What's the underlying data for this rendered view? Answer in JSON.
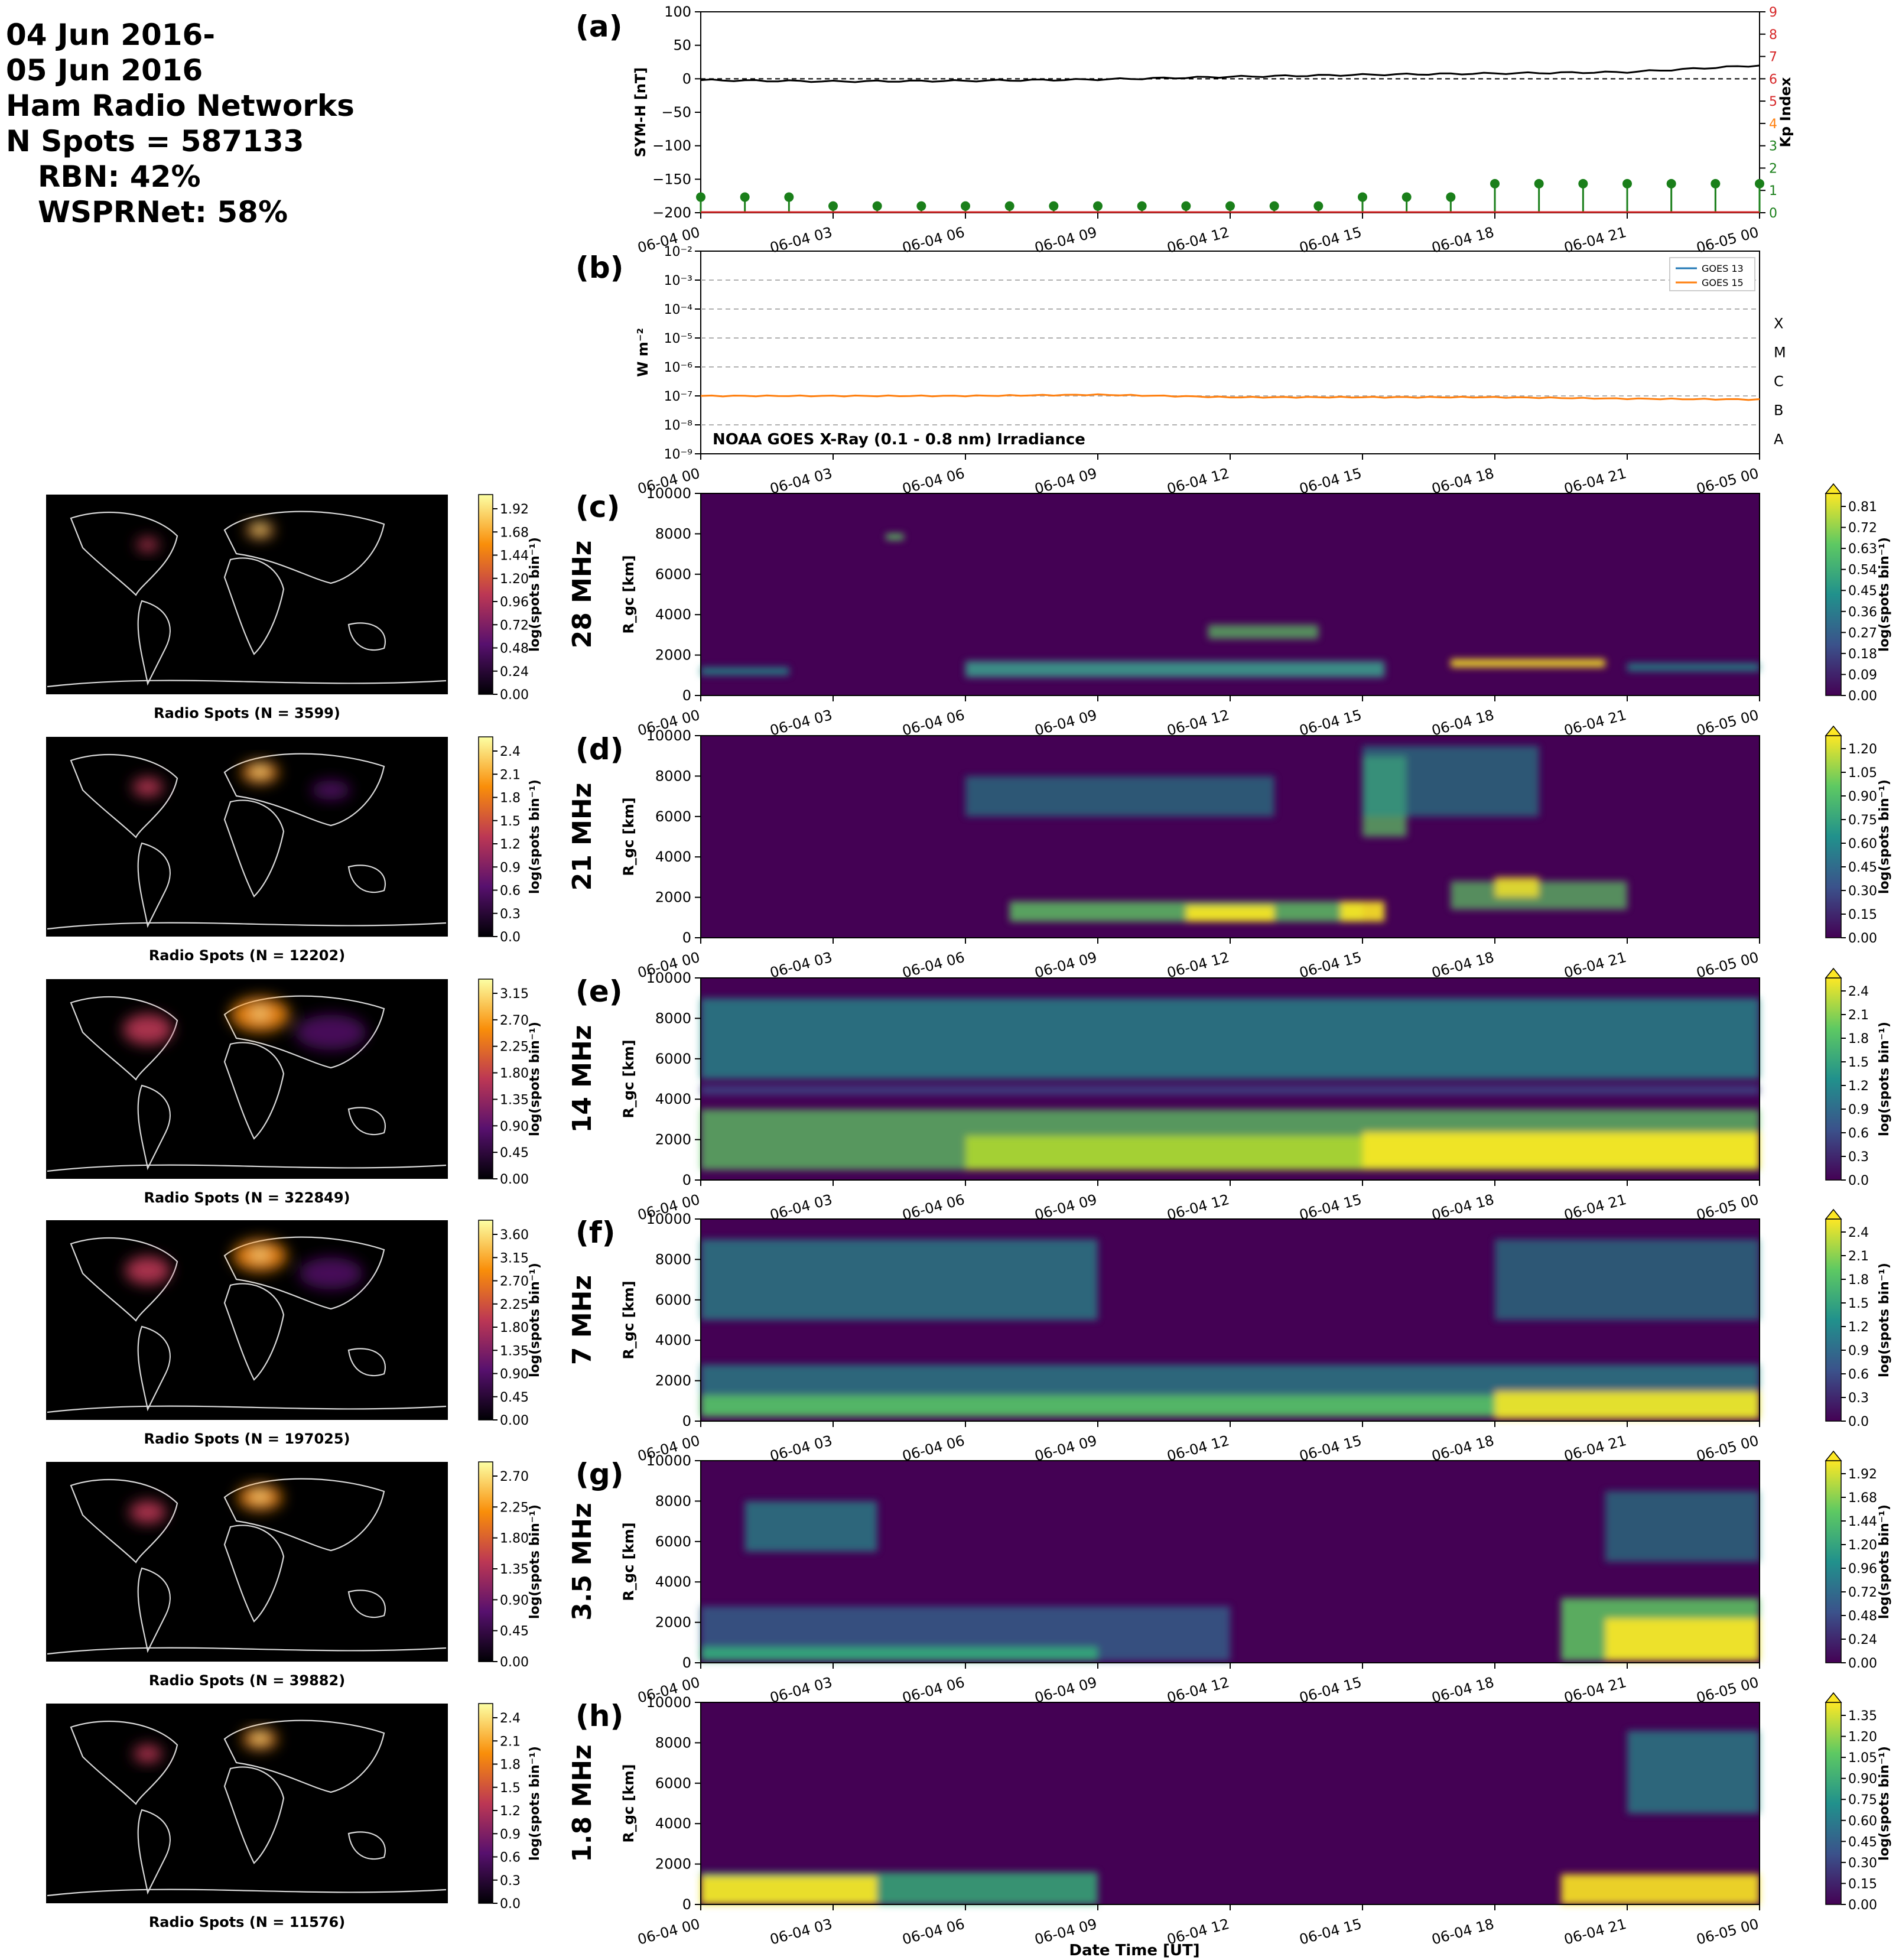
{
  "header": {
    "lines": [
      "04 Jun 2016-",
      "05 Jun 2016",
      "Ham Radio Networks",
      "N Spots = 587133"
    ],
    "sub_lines": [
      "RBN: 42%",
      "WSPRNet: 58%"
    ]
  },
  "time_ticks": [
    "06-04 00",
    "06-04 03",
    "06-04 06",
    "06-04 09",
    "06-04 12",
    "06-04 15",
    "06-04 18",
    "06-04 21",
    "06-05 00"
  ],
  "x_axis_label": "Date Time [UT]",
  "colors": {
    "black": "#000000",
    "green": "#1a7f1a",
    "red": "#d62728",
    "goes13": "#1f77b4",
    "goes15": "#ff7f0e",
    "viridis_low": "#440154",
    "viridis_high": "#fde725"
  },
  "chart_data": [
    {
      "type": "line",
      "panel": "(a)",
      "ylabel": "SYM-H [nT]",
      "ylim": [
        -200,
        100
      ],
      "yticks": [
        100,
        50,
        0,
        -50,
        -100,
        -150,
        -200
      ],
      "x": [
        "06-04 00",
        "06-04 03",
        "06-04 06",
        "06-04 09",
        "06-04 12",
        "06-04 15",
        "06-04 18",
        "06-04 21",
        "06-05 00"
      ],
      "series": [
        {
          "values": [
            -2,
            -4,
            -3,
            -1,
            3,
            6,
            8,
            10,
            20
          ]
        }
      ],
      "reference_line": 0,
      "secondary": {
        "type": "stem",
        "ylabel": "Kp Index",
        "ylim": [
          0,
          9
        ],
        "yticks": [
          0,
          1,
          2,
          3,
          4,
          5,
          6,
          7,
          8,
          9
        ],
        "x_hours": [
          0,
          1,
          2,
          3,
          4,
          5,
          6,
          7,
          8,
          9,
          10,
          11,
          12,
          13,
          14,
          15,
          16,
          17,
          18,
          19,
          20,
          21,
          22,
          23,
          24
        ],
        "values": [
          0.7,
          0.7,
          0.7,
          0.3,
          0.3,
          0.3,
          0.3,
          0.3,
          0.3,
          0.3,
          0.3,
          0.3,
          0.3,
          0.3,
          0.3,
          0.7,
          0.7,
          0.7,
          1.3,
          1.3,
          1.3,
          1.3,
          1.3,
          1.3,
          1.3
        ]
      }
    },
    {
      "type": "line",
      "panel": "(b)",
      "title": "NOAA GOES X-Ray (0.1 - 0.8 nm) Irradiance",
      "ylabel": "W m⁻²",
      "scale": "log",
      "ylim": [
        "1e-9",
        "1e-2"
      ],
      "yticks": [
        "10⁻²",
        "10⁻³",
        "10⁻⁴",
        "10⁻⁵",
        "10⁻⁶",
        "10⁻⁷",
        "10⁻⁸",
        "10⁻⁹"
      ],
      "flare_classes": [
        "X",
        "M",
        "C",
        "B",
        "A"
      ],
      "legend": [
        "GOES 13",
        "GOES 15"
      ],
      "legend_position": "top-right",
      "x": [
        "06-04 00",
        "06-04 03",
        "06-04 06",
        "06-04 09",
        "06-04 12",
        "06-04 15",
        "06-04 18",
        "06-04 21",
        "06-05 00"
      ],
      "series": [
        {
          "name": "GOES 15",
          "values": [
            1e-07,
            1e-07,
            1e-07,
            1.1e-07,
            9e-08,
            9e-08,
            9e-08,
            8e-08,
            7.5e-08
          ]
        }
      ]
    },
    {
      "type": "heatmap",
      "panel": "(c)",
      "band": "28 MHz",
      "ylabel": "R_gc [km]",
      "ylim": [
        0,
        10000
      ],
      "yticks": [
        0,
        2000,
        4000,
        6000,
        8000,
        10000
      ],
      "colorbar": {
        "label": "log(spots bin⁻¹)",
        "ticks": [
          "0.00",
          "0.09",
          "0.18",
          "0.27",
          "0.36",
          "0.45",
          "0.54",
          "0.63",
          "0.72",
          "0.81"
        ]
      },
      "map": {
        "label": "Radio Spots (N = 3599)",
        "colorbar_ticks": [
          "0.00",
          "0.24",
          "0.48",
          "0.72",
          "0.96",
          "1.20",
          "1.44",
          "1.68",
          "1.92"
        ]
      }
    },
    {
      "type": "heatmap",
      "panel": "(d)",
      "band": "21 MHz",
      "ylabel": "R_gc [km]",
      "ylim": [
        0,
        10000
      ],
      "yticks": [
        0,
        2000,
        4000,
        6000,
        8000,
        10000
      ],
      "colorbar": {
        "label": "log(spots bin⁻¹)",
        "ticks": [
          "0.00",
          "0.15",
          "0.30",
          "0.45",
          "0.60",
          "0.75",
          "0.90",
          "1.05",
          "1.20"
        ]
      },
      "map": {
        "label": "Radio Spots (N = 12202)",
        "colorbar_ticks": [
          "0.0",
          "0.3",
          "0.6",
          "0.9",
          "1.2",
          "1.5",
          "1.8",
          "2.1",
          "2.4"
        ]
      }
    },
    {
      "type": "heatmap",
      "panel": "(e)",
      "band": "14 MHz",
      "ylabel": "R_gc [km]",
      "ylim": [
        0,
        10000
      ],
      "yticks": [
        0,
        2000,
        4000,
        6000,
        8000,
        10000
      ],
      "colorbar": {
        "label": "log(spots bin⁻¹)",
        "ticks": [
          "0.0",
          "0.3",
          "0.6",
          "0.9",
          "1.2",
          "1.5",
          "1.8",
          "2.1",
          "2.4"
        ]
      },
      "map": {
        "label": "Radio Spots (N = 322849)",
        "colorbar_ticks": [
          "0.00",
          "0.45",
          "0.90",
          "1.35",
          "1.80",
          "2.25",
          "2.70",
          "3.15"
        ]
      }
    },
    {
      "type": "heatmap",
      "panel": "(f)",
      "band": "7 MHz",
      "ylabel": "R_gc [km]",
      "ylim": [
        0,
        10000
      ],
      "yticks": [
        0,
        2000,
        4000,
        6000,
        8000,
        10000
      ],
      "colorbar": {
        "label": "log(spots bin⁻¹)",
        "ticks": [
          "0.0",
          "0.3",
          "0.6",
          "0.9",
          "1.2",
          "1.5",
          "1.8",
          "2.1",
          "2.4"
        ]
      },
      "map": {
        "label": "Radio Spots (N = 197025)",
        "colorbar_ticks": [
          "0.00",
          "0.45",
          "0.90",
          "1.35",
          "1.80",
          "2.25",
          "2.70",
          "3.15",
          "3.60"
        ]
      }
    },
    {
      "type": "heatmap",
      "panel": "(g)",
      "band": "3.5 MHz",
      "ylabel": "R_gc [km]",
      "ylim": [
        0,
        10000
      ],
      "yticks": [
        0,
        2000,
        4000,
        6000,
        8000,
        10000
      ],
      "colorbar": {
        "label": "log(spots bin⁻¹)",
        "ticks": [
          "0.00",
          "0.24",
          "0.48",
          "0.72",
          "0.96",
          "1.20",
          "1.44",
          "1.68",
          "1.92"
        ]
      },
      "map": {
        "label": "Radio Spots (N = 39882)",
        "colorbar_ticks": [
          "0.00",
          "0.45",
          "0.90",
          "1.35",
          "1.80",
          "2.25",
          "2.70"
        ]
      }
    },
    {
      "type": "heatmap",
      "panel": "(h)",
      "band": "1.8 MHz",
      "ylabel": "R_gc [km]",
      "ylim": [
        0,
        10000
      ],
      "yticks": [
        0,
        2000,
        4000,
        6000,
        8000,
        10000
      ],
      "colorbar": {
        "label": "log(spots bin⁻¹)",
        "ticks": [
          "0.00",
          "0.15",
          "0.30",
          "0.45",
          "0.60",
          "0.75",
          "0.90",
          "1.05",
          "1.20",
          "1.35"
        ]
      },
      "map": {
        "label": "Radio Spots (N = 11576)",
        "colorbar_ticks": [
          "0.0",
          "0.3",
          "0.6",
          "0.9",
          "1.2",
          "1.5",
          "1.8",
          "2.1",
          "2.4"
        ]
      }
    }
  ]
}
